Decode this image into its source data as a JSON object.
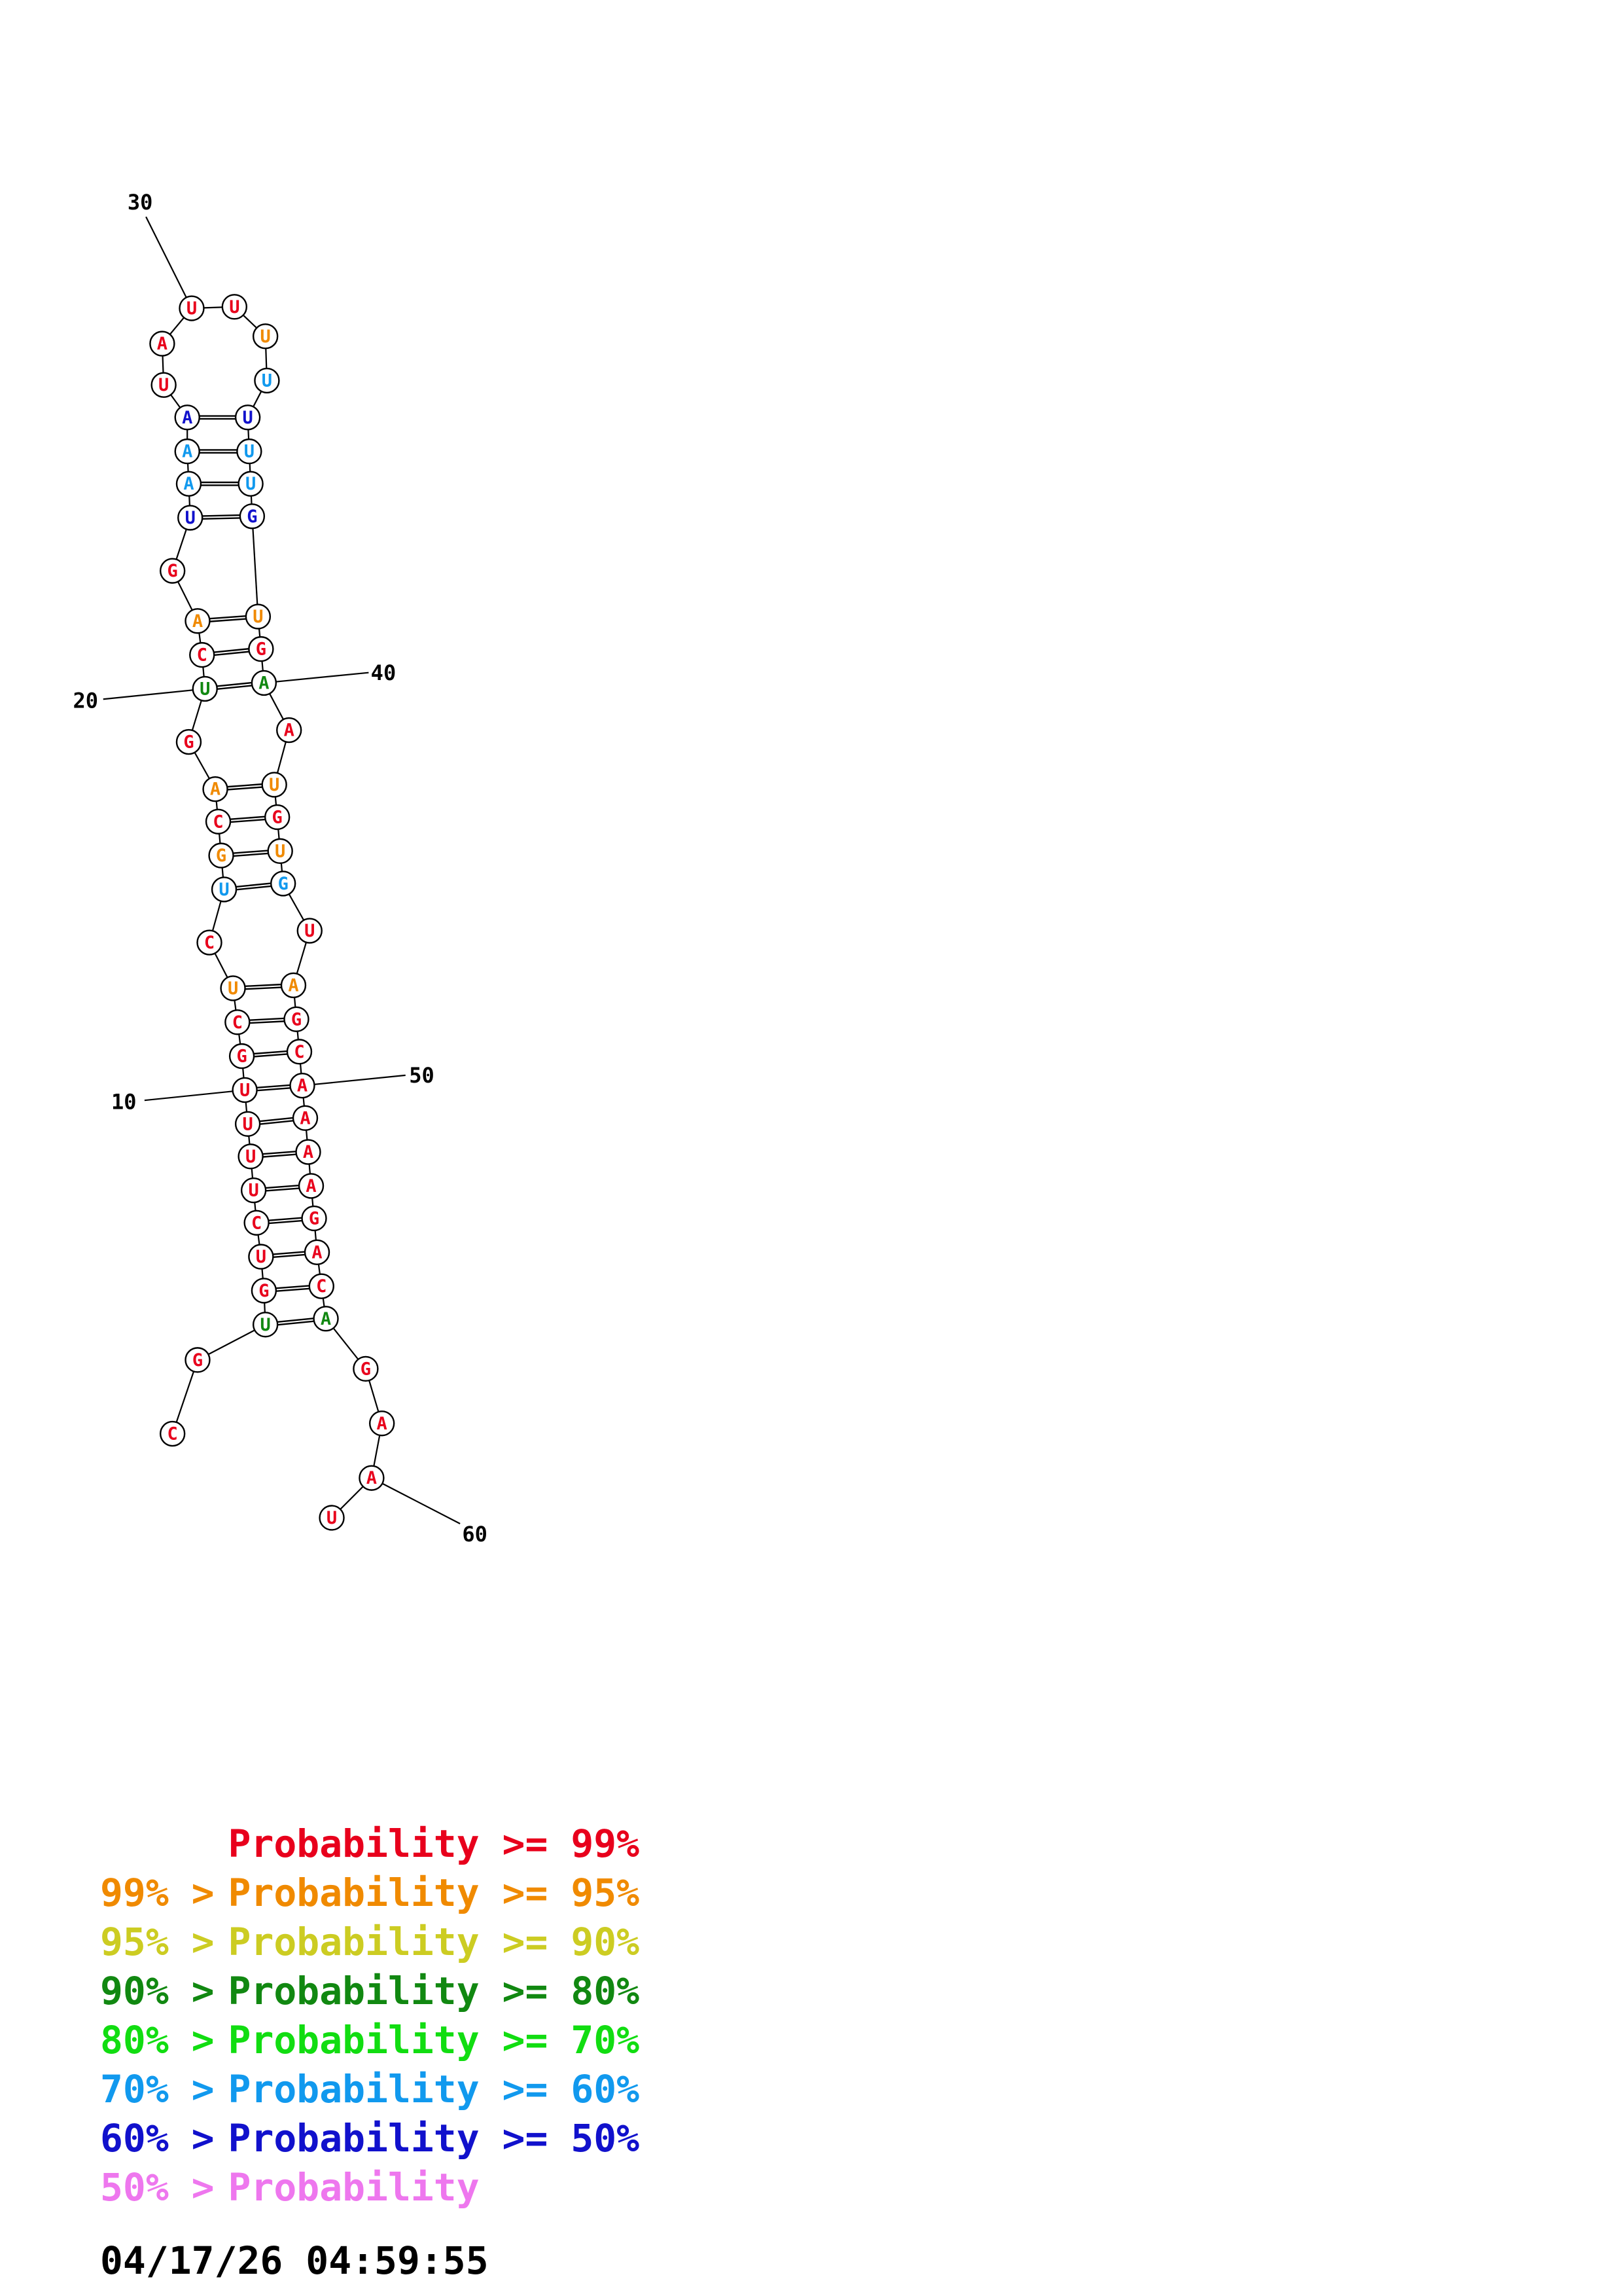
{
  "colors": {
    "red": "#e8001c",
    "orange": "#f08a00",
    "yellow": "#cccc22",
    "darkgreen": "#118811",
    "green": "#11dd11",
    "lightblue": "#1199ee",
    "blue": "#1111cc",
    "pink": "#ee77ee"
  },
  "sequence": [
    {
      "i": 1,
      "b": "C",
      "c": "red"
    },
    {
      "i": 2,
      "b": "G",
      "c": "red"
    },
    {
      "i": 3,
      "b": "U",
      "c": "darkgreen"
    },
    {
      "i": 4,
      "b": "G",
      "c": "red"
    },
    {
      "i": 5,
      "b": "U",
      "c": "red"
    },
    {
      "i": 6,
      "b": "C",
      "c": "red"
    },
    {
      "i": 7,
      "b": "U",
      "c": "red"
    },
    {
      "i": 8,
      "b": "U",
      "c": "red"
    },
    {
      "i": 9,
      "b": "U",
      "c": "red"
    },
    {
      "i": 10,
      "b": "U",
      "c": "red"
    },
    {
      "i": 11,
      "b": "G",
      "c": "red"
    },
    {
      "i": 12,
      "b": "C",
      "c": "red"
    },
    {
      "i": 13,
      "b": "U",
      "c": "orange"
    },
    {
      "i": 14,
      "b": "C",
      "c": "red"
    },
    {
      "i": 15,
      "b": "U",
      "c": "lightblue"
    },
    {
      "i": 16,
      "b": "G",
      "c": "orange"
    },
    {
      "i": 17,
      "b": "C",
      "c": "red"
    },
    {
      "i": 18,
      "b": "A",
      "c": "orange"
    },
    {
      "i": 19,
      "b": "G",
      "c": "red"
    },
    {
      "i": 20,
      "b": "U",
      "c": "darkgreen"
    },
    {
      "i": 21,
      "b": "C",
      "c": "red"
    },
    {
      "i": 22,
      "b": "A",
      "c": "orange"
    },
    {
      "i": 23,
      "b": "G",
      "c": "red"
    },
    {
      "i": 24,
      "b": "U",
      "c": "blue"
    },
    {
      "i": 25,
      "b": "A",
      "c": "lightblue"
    },
    {
      "i": 26,
      "b": "A",
      "c": "lightblue"
    },
    {
      "i": 27,
      "b": "A",
      "c": "blue"
    },
    {
      "i": 28,
      "b": "U",
      "c": "red"
    },
    {
      "i": 29,
      "b": "A",
      "c": "red"
    },
    {
      "i": 30,
      "b": "U",
      "c": "red"
    },
    {
      "i": 31,
      "b": "U",
      "c": "red"
    },
    {
      "i": 32,
      "b": "U",
      "c": "orange"
    },
    {
      "i": 33,
      "b": "U",
      "c": "lightblue"
    },
    {
      "i": 34,
      "b": "U",
      "c": "blue"
    },
    {
      "i": 35,
      "b": "U",
      "c": "lightblue"
    },
    {
      "i": 36,
      "b": "U",
      "c": "lightblue"
    },
    {
      "i": 37,
      "b": "G",
      "c": "blue"
    },
    {
      "i": 38,
      "b": "U",
      "c": "orange"
    },
    {
      "i": 39,
      "b": "G",
      "c": "red"
    },
    {
      "i": 40,
      "b": "A",
      "c": "darkgreen"
    },
    {
      "i": 41,
      "b": "A",
      "c": "red"
    },
    {
      "i": 42,
      "b": "U",
      "c": "orange"
    },
    {
      "i": 43,
      "b": "G",
      "c": "red"
    },
    {
      "i": 44,
      "b": "U",
      "c": "orange"
    },
    {
      "i": 45,
      "b": "G",
      "c": "lightblue"
    },
    {
      "i": 46,
      "b": "U",
      "c": "red"
    },
    {
      "i": 47,
      "b": "A",
      "c": "orange"
    },
    {
      "i": 48,
      "b": "G",
      "c": "red"
    },
    {
      "i": 49,
      "b": "C",
      "c": "red"
    },
    {
      "i": 50,
      "b": "A",
      "c": "red"
    },
    {
      "i": 51,
      "b": "A",
      "c": "red"
    },
    {
      "i": 52,
      "b": "A",
      "c": "red"
    },
    {
      "i": 53,
      "b": "A",
      "c": "red"
    },
    {
      "i": 54,
      "b": "G",
      "c": "red"
    },
    {
      "i": 55,
      "b": "A",
      "c": "red"
    },
    {
      "i": 56,
      "b": "C",
      "c": "red"
    },
    {
      "i": 57,
      "b": "A",
      "c": "darkgreen"
    },
    {
      "i": 58,
      "b": "G",
      "c": "red"
    },
    {
      "i": 59,
      "b": "A",
      "c": "red"
    },
    {
      "i": 60,
      "b": "A",
      "c": "red"
    },
    {
      "i": 61,
      "b": "U",
      "c": "red"
    }
  ],
  "pairs": [
    [
      3,
      57
    ],
    [
      4,
      56
    ],
    [
      5,
      55
    ],
    [
      6,
      54
    ],
    [
      7,
      53
    ],
    [
      8,
      52
    ],
    [
      9,
      51
    ],
    [
      10,
      50
    ],
    [
      11,
      49
    ],
    [
      12,
      48
    ],
    [
      13,
      47
    ],
    [
      15,
      45
    ],
    [
      16,
      44
    ],
    [
      17,
      43
    ],
    [
      18,
      42
    ],
    [
      20,
      40
    ],
    [
      21,
      39
    ],
    [
      22,
      38
    ],
    [
      24,
      37
    ],
    [
      25,
      36
    ],
    [
      26,
      35
    ],
    [
      27,
      34
    ]
  ],
  "index_labels": [
    "10",
    "20",
    "30",
    "40",
    "50",
    "60"
  ],
  "legend": [
    {
      "prefix": "",
      "label": "Probability",
      "suffix": ">= 99%",
      "c": "red"
    },
    {
      "prefix": "99% >",
      "label": "Probability",
      "suffix": ">= 95%",
      "c": "orange"
    },
    {
      "prefix": "95% >",
      "label": "Probability",
      "suffix": ">= 90%",
      "c": "yellow"
    },
    {
      "prefix": "90% >",
      "label": "Probability",
      "suffix": ">= 80%",
      "c": "darkgreen"
    },
    {
      "prefix": "80% >",
      "label": "Probability",
      "suffix": ">= 70%",
      "c": "green"
    },
    {
      "prefix": "70% >",
      "label": "Probability",
      "suffix": ">= 60%",
      "c": "lightblue"
    },
    {
      "prefix": "60% >",
      "label": "Probability",
      "suffix": ">= 50%",
      "c": "blue"
    },
    {
      "prefix": "50% >",
      "label": "Probability",
      "suffix": "",
      "c": "pink"
    }
  ],
  "timestamp": "04/17/26 04:59:55"
}
